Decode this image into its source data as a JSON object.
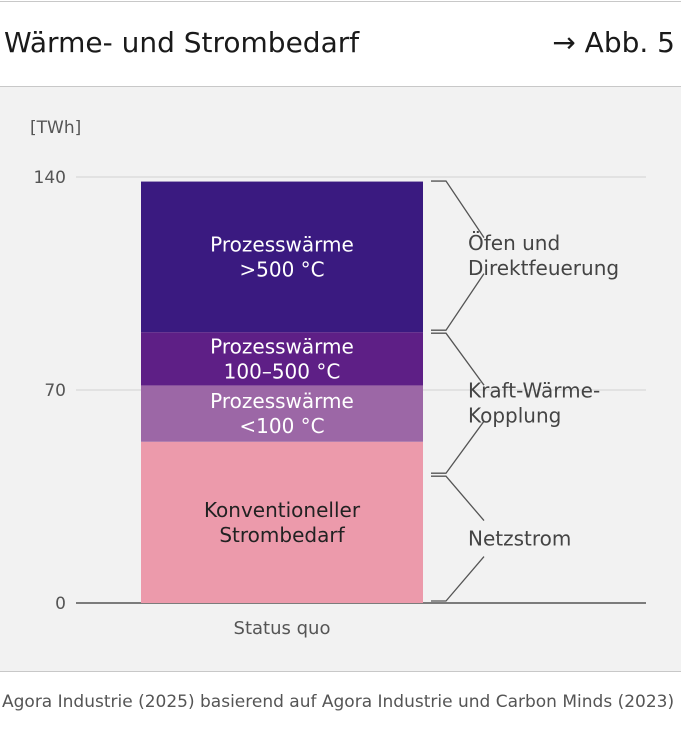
{
  "header": {
    "title": "Wärme- und Strombedarf",
    "figure_ref": "→ Abb. 5"
  },
  "source": "Agora Industrie (2025) basierend auf Agora Industrie und Carbon Minds (2023)",
  "colors": {
    "background": "#f2f2f2",
    "grid": "#d9d9d9",
    "axis": "#555555",
    "bracket": "#555555",
    "segment_label": "#ffffff",
    "dark_label": "#222222"
  },
  "chart_data": {
    "type": "bar",
    "stacked": true,
    "unit_label": "[TWh]",
    "categories": [
      "Status quo"
    ],
    "ylim": [
      0,
      140
    ],
    "yticks": [
      0,
      70,
      140
    ],
    "grid": true,
    "series": [
      {
        "label_lines": [
          "Konventioneller",
          "Strombedarf"
        ],
        "values": [
          53
        ],
        "color": "#ec9aab",
        "label_color": "#222222"
      },
      {
        "label_lines": [
          "Prozesswärme",
          "<100 °C"
        ],
        "values": [
          18.5
        ],
        "color": "#9c67a6",
        "label_color": "#ffffff"
      },
      {
        "label_lines": [
          "Prozesswärme",
          "100–500 °C"
        ],
        "values": [
          17.5
        ],
        "color": "#5e1f86",
        "label_color": "#ffffff"
      },
      {
        "label_lines": [
          "Prozesswärme",
          ">500 °C"
        ],
        "values": [
          49.5
        ],
        "color": "#3a1a80",
        "label_color": "#ffffff"
      }
    ],
    "annotations": [
      {
        "label_lines": [
          "Öfen und",
          "Direktfeuerung"
        ],
        "from": 89,
        "to": 139
      },
      {
        "label_lines": [
          "Kraft-Wärme-",
          "Kopplung"
        ],
        "from": 42,
        "to": 89
      },
      {
        "label_lines": [
          "Netzstrom"
        ],
        "from": 0,
        "to": 42
      }
    ]
  }
}
